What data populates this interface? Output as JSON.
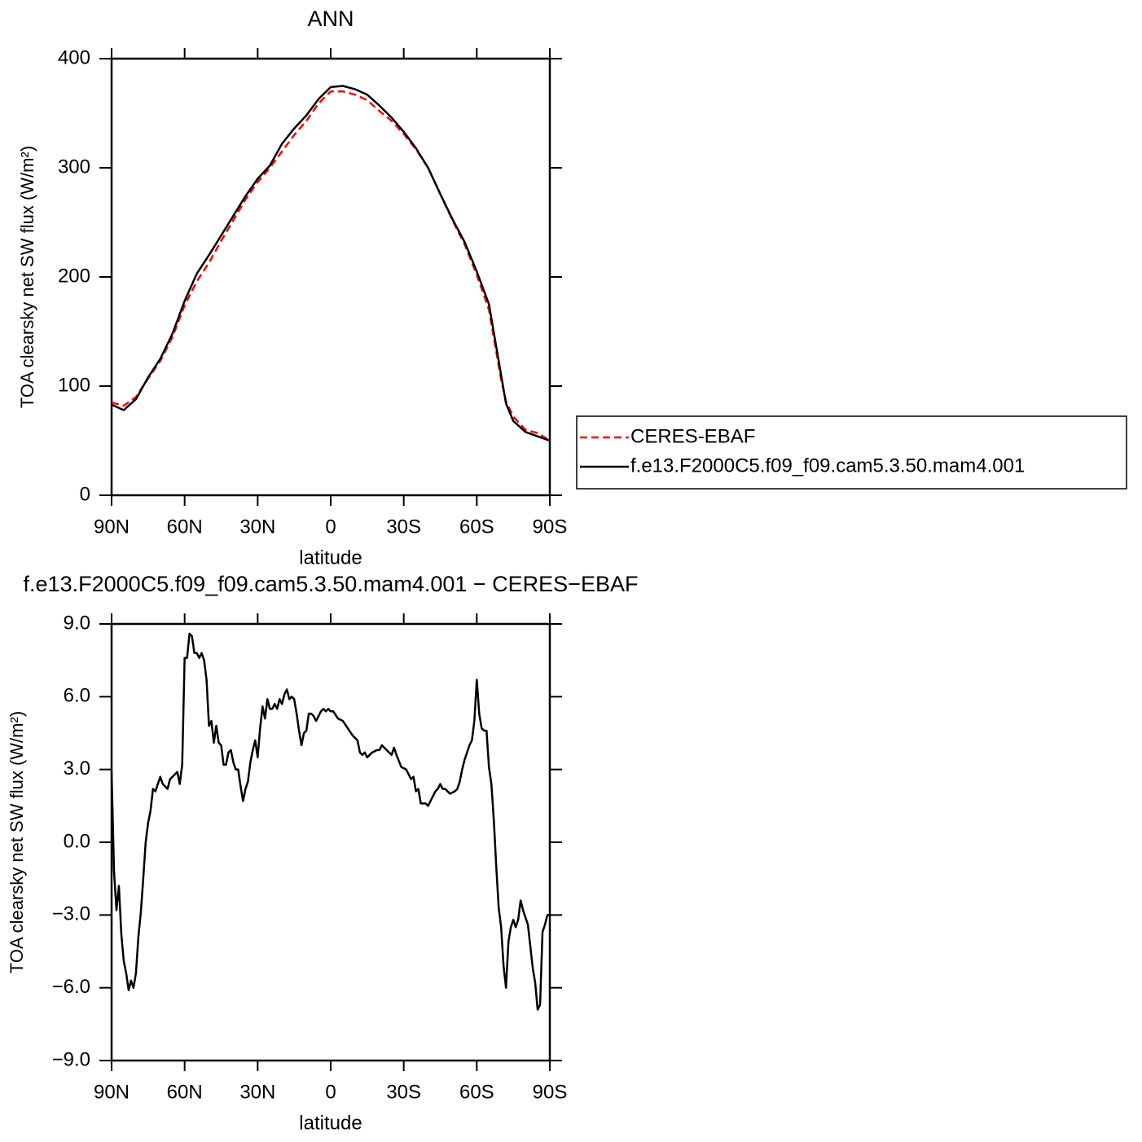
{
  "chart_data": [
    {
      "type": "line",
      "title": "ANN",
      "xlabel": "latitude",
      "ylabel": "TOA clearsky net SW flux (W/m²)",
      "x": [
        90,
        85,
        80,
        75,
        70,
        65,
        60,
        55,
        50,
        45,
        40,
        35,
        30,
        25,
        20,
        15,
        10,
        5,
        0,
        -5,
        -10,
        -15,
        -20,
        -25,
        -30,
        -35,
        -40,
        -45,
        -50,
        -55,
        -60,
        -65,
        -70,
        -72,
        -75,
        -80,
        -85,
        -90
      ],
      "series": [
        {
          "name": "CERES-EBAF",
          "color": "#ff0000",
          "dash": true,
          "values": [
            85,
            82,
            90,
            107,
            123,
            145,
            174,
            196,
            213,
            233,
            252,
            271,
            287,
            300,
            315,
            330,
            343,
            359,
            370,
            370,
            367,
            362,
            352,
            343,
            331,
            317,
            300,
            276,
            252,
            230,
            202,
            170,
            106,
            86,
            72,
            60,
            57,
            50
          ]
        },
        {
          "name": "f.e13.F2000C5.f09_f09.cam5.3.50.mam4.001",
          "color": "#000000",
          "dash": false,
          "values": [
            83,
            78,
            88,
            108,
            125,
            148,
            178,
            203,
            220,
            238,
            256,
            274,
            290,
            302,
            322,
            336,
            348,
            363,
            374,
            375,
            372,
            367,
            357,
            346,
            333,
            318,
            300,
            276,
            253,
            232,
            205,
            175,
            110,
            84,
            68,
            58,
            54,
            50
          ]
        }
      ],
      "xlim": [
        90,
        -90
      ],
      "xticks": [
        {
          "value": 90,
          "label": "90N"
        },
        {
          "value": 60,
          "label": "60N"
        },
        {
          "value": 30,
          "label": "30N"
        },
        0,
        {
          "value": -30,
          "label": "30S"
        },
        {
          "value": -60,
          "label": "60S"
        },
        {
          "value": -90,
          "label": "90S"
        }
      ],
      "ylim": [
        0,
        400
      ],
      "yticks": [
        0,
        100,
        200,
        300,
        400
      ]
    },
    {
      "type": "line",
      "title": "f.e13.F2000C5.f09_f09.cam5.3.50.mam4.001 − CERES−EBAF",
      "xlabel": "latitude",
      "ylabel": "TOA clearsky net SW flux (W/m²)",
      "x": [
        90,
        89,
        88,
        87,
        86,
        85,
        84,
        83,
        82,
        81,
        80,
        79,
        78,
        77,
        76,
        75,
        74,
        73,
        72,
        71,
        70,
        69,
        67,
        66,
        64,
        63,
        62,
        61,
        60,
        59,
        58,
        57,
        56,
        55,
        54,
        53,
        52,
        51,
        50,
        49,
        48,
        47,
        46,
        45,
        44,
        43,
        42,
        41,
        40,
        39,
        38,
        37,
        36,
        35,
        34,
        33,
        32,
        31,
        30,
        29,
        28,
        27,
        26,
        25,
        24,
        23,
        22,
        21,
        20,
        19,
        18,
        17,
        16,
        15,
        14,
        13,
        12,
        11,
        10,
        9,
        8,
        7,
        6,
        5,
        4,
        3,
        2,
        1,
        0,
        -1,
        -3,
        -5,
        -7,
        -9,
        -11,
        -12,
        -13,
        -14,
        -15,
        -17,
        -19,
        -20,
        -21,
        -22,
        -23,
        -25,
        -26,
        -27,
        -29,
        -31,
        -32,
        -33,
        -34,
        -35,
        -36,
        -37,
        -39,
        -40,
        -41,
        -42,
        -43,
        -44,
        -45,
        -46,
        -47,
        -49,
        -51,
        -52,
        -53,
        -54,
        -55,
        -57,
        -58,
        -59,
        -60,
        -61,
        -62,
        -63,
        -64,
        -65,
        -66,
        -67,
        -68,
        -69,
        -70,
        -71,
        -72,
        -73,
        -74,
        -75,
        -76,
        -77,
        -78,
        -79,
        -80,
        -81,
        -82,
        -83,
        -84,
        -85,
        -86,
        -87,
        -88,
        -89,
        -90
      ],
      "color": "#000000",
      "values": [
        2.9,
        -1.2,
        -2.8,
        -1.8,
        -3.8,
        -4.9,
        -5.4,
        -6.1,
        -5.7,
        -6.0,
        -5.4,
        -3.9,
        -2.9,
        -1.5,
        0.0,
        0.8,
        1.3,
        2.2,
        2.1,
        2.4,
        2.7,
        2.4,
        2.2,
        2.6,
        2.8,
        2.9,
        2.4,
        3.2,
        7.6,
        7.6,
        8.6,
        8.5,
        7.8,
        7.8,
        7.6,
        7.8,
        7.5,
        6.7,
        4.8,
        5.0,
        4.1,
        4.8,
        4.1,
        4.0,
        3.2,
        3.2,
        3.7,
        3.8,
        3.3,
        3.0,
        3.0,
        2.3,
        1.7,
        2.2,
        2.5,
        3.3,
        3.8,
        4.2,
        3.5,
        4.7,
        5.6,
        5.1,
        5.9,
        5.5,
        5.5,
        5.7,
        5.5,
        5.9,
        5.7,
        6.1,
        6.3,
        5.9,
        6.0,
        5.9,
        5.3,
        4.6,
        4.0,
        4.5,
        4.6,
        5.3,
        5.3,
        5.2,
        5.0,
        5.2,
        5.4,
        5.5,
        5.4,
        5.5,
        5.4,
        5.4,
        5.1,
        5.0,
        4.7,
        4.4,
        4.2,
        3.7,
        3.6,
        3.7,
        3.5,
        3.7,
        3.8,
        3.8,
        4.0,
        3.9,
        3.8,
        3.6,
        3.9,
        3.6,
        3.1,
        3.0,
        2.8,
        2.6,
        2.7,
        2.1,
        2.2,
        1.6,
        1.6,
        1.5,
        1.7,
        1.9,
        2.1,
        2.2,
        2.4,
        2.2,
        2.2,
        2.0,
        2.1,
        2.2,
        2.5,
        3.0,
        3.4,
        4.0,
        4.2,
        5.0,
        6.7,
        5.3,
        4.7,
        4.6,
        4.6,
        3.1,
        2.4,
        0.9,
        -1.0,
        -2.7,
        -3.5,
        -5.1,
        -6.0,
        -4.1,
        -3.5,
        -3.2,
        -3.5,
        -3.2,
        -2.4,
        -2.8,
        -3.1,
        -3.4,
        -4.3,
        -5.2,
        -5.8,
        -6.9,
        -6.7,
        -3.7,
        -3.4,
        -3.0,
        -3.0
      ],
      "xlim": [
        90,
        -90
      ],
      "xticks": [
        {
          "value": 90,
          "label": "90N"
        },
        {
          "value": 60,
          "label": "60N"
        },
        {
          "value": 30,
          "label": "30N"
        },
        0,
        {
          "value": -30,
          "label": "30S"
        },
        {
          "value": -60,
          "label": "60S"
        },
        {
          "value": -90,
          "label": "90S"
        }
      ],
      "ylim": [
        -9,
        9
      ],
      "yticks": [
        {
          "value": -9,
          "label": "−9.0"
        },
        {
          "value": -6,
          "label": "−6.0"
        },
        {
          "value": -3,
          "label": "−3.0"
        },
        {
          "value": 0,
          "label": "0.0"
        },
        {
          "value": 3,
          "label": "3.0"
        },
        {
          "value": 6,
          "label": "6.0"
        },
        {
          "value": 9,
          "label": "9.0"
        }
      ]
    }
  ]
}
